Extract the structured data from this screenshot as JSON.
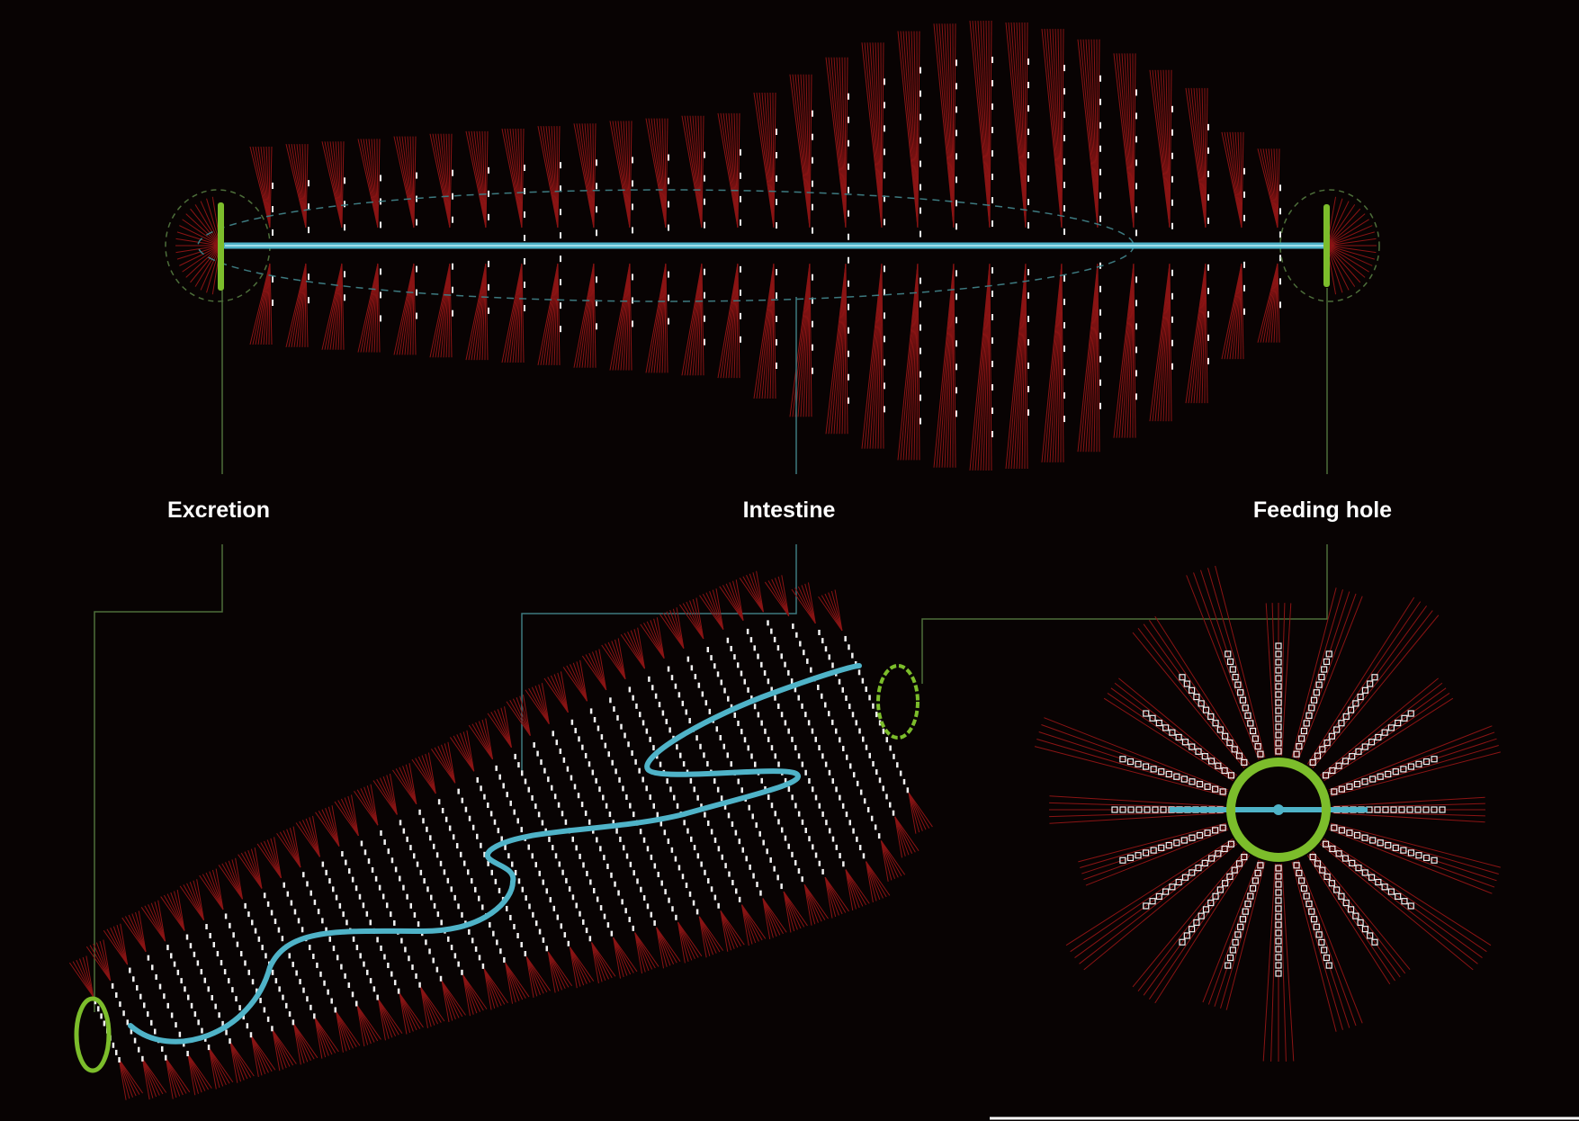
{
  "labels": {
    "excretion": "Excretion",
    "intestine": "Intestine",
    "feeding_hole": "Feeding hole"
  },
  "colors": {
    "background": "#080303",
    "spines": "#8a1414",
    "segments": "#f2f2f2",
    "intestine": "#4fb3c8",
    "openings": "#7cbd2b",
    "leader_excretion": "#4d6e3a",
    "leader_intestine": "#3d7a80",
    "leader_feeding": "#4d6e3a"
  },
  "icons": {
    "openings": "ring",
    "spines": "radial-lines",
    "segments": "short-ticks"
  }
}
